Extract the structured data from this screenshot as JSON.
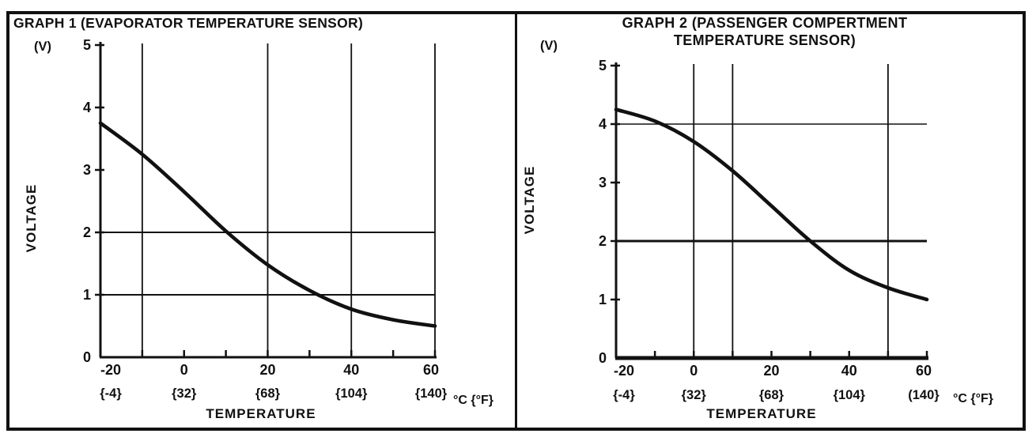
{
  "window": {
    "bg": "#ffffff",
    "ink": "#111111"
  },
  "chart_data": [
    {
      "type": "line",
      "title_lines": [
        "GRAPH 1 (EVAPORATOR TEMPERATURE SENSOR)"
      ],
      "y_unit_label": "(V)",
      "ylabel": "VOLTAGE",
      "xlabel": "TEMPERATURE",
      "x_unit_label": "°C {°F}",
      "xlim": [
        -20,
        60
      ],
      "ylim": [
        0,
        5
      ],
      "x_tick_step": 10,
      "x_major_ticks": [
        -20,
        0,
        20,
        40,
        60
      ],
      "x_major_tick_labels": [
        "-20",
        "0",
        "20",
        "40",
        "60"
      ],
      "x_fahrenheit_labels": [
        "{-4}",
        "{32}",
        "{68}",
        "{104}",
        "{140}"
      ],
      "y_ticks": [
        0,
        1,
        2,
        3,
        4,
        5
      ],
      "y_tick_labels": [
        "0",
        "1",
        "2",
        "3",
        "4",
        "5"
      ],
      "grid_vlines_at": [
        -10,
        20,
        40,
        60
      ],
      "grid_hlines_at": [
        1,
        2
      ],
      "series": [
        {
          "name": "evaporator-sensor-characteristic",
          "x": [
            -20,
            -10,
            0,
            10,
            20,
            30,
            40,
            50,
            60
          ],
          "y": [
            3.75,
            3.25,
            2.65,
            2.02,
            1.48,
            1.07,
            0.77,
            0.6,
            0.5
          ]
        }
      ]
    },
    {
      "type": "line",
      "title_lines": [
        "GRAPH 2  (PASSENGER COMPERTMENT",
        "TEMPERATURE SENSOR)"
      ],
      "y_unit_label": "(V)",
      "ylabel": "VOLTAGE",
      "xlabel": "TEMPERATURE",
      "x_unit_label": "°C {°F}",
      "xlim": [
        -20,
        60
      ],
      "ylim": [
        0,
        5
      ],
      "x_tick_step": 10,
      "x_major_ticks": [
        -20,
        0,
        20,
        40,
        60
      ],
      "x_major_tick_labels": [
        "-20",
        "0",
        "20",
        "40",
        "60"
      ],
      "x_fahrenheit_labels": [
        "{-4}",
        "{32}",
        "{68}",
        "{104}",
        "(140}"
      ],
      "y_ticks": [
        0,
        1,
        2,
        3,
        4,
        5
      ],
      "y_tick_labels": [
        "0",
        "1",
        "2",
        "3",
        "4",
        "5"
      ],
      "grid_vlines_at": [
        0,
        10,
        50
      ],
      "grid_hlines_at": [
        2,
        4
      ],
      "series": [
        {
          "name": "passenger-compartment-sensor-characteristic",
          "x": [
            -20,
            -10,
            0,
            10,
            20,
            30,
            40,
            50,
            60
          ],
          "y": [
            4.25,
            4.05,
            3.7,
            3.2,
            2.6,
            2.0,
            1.5,
            1.2,
            1.0
          ]
        }
      ]
    }
  ]
}
